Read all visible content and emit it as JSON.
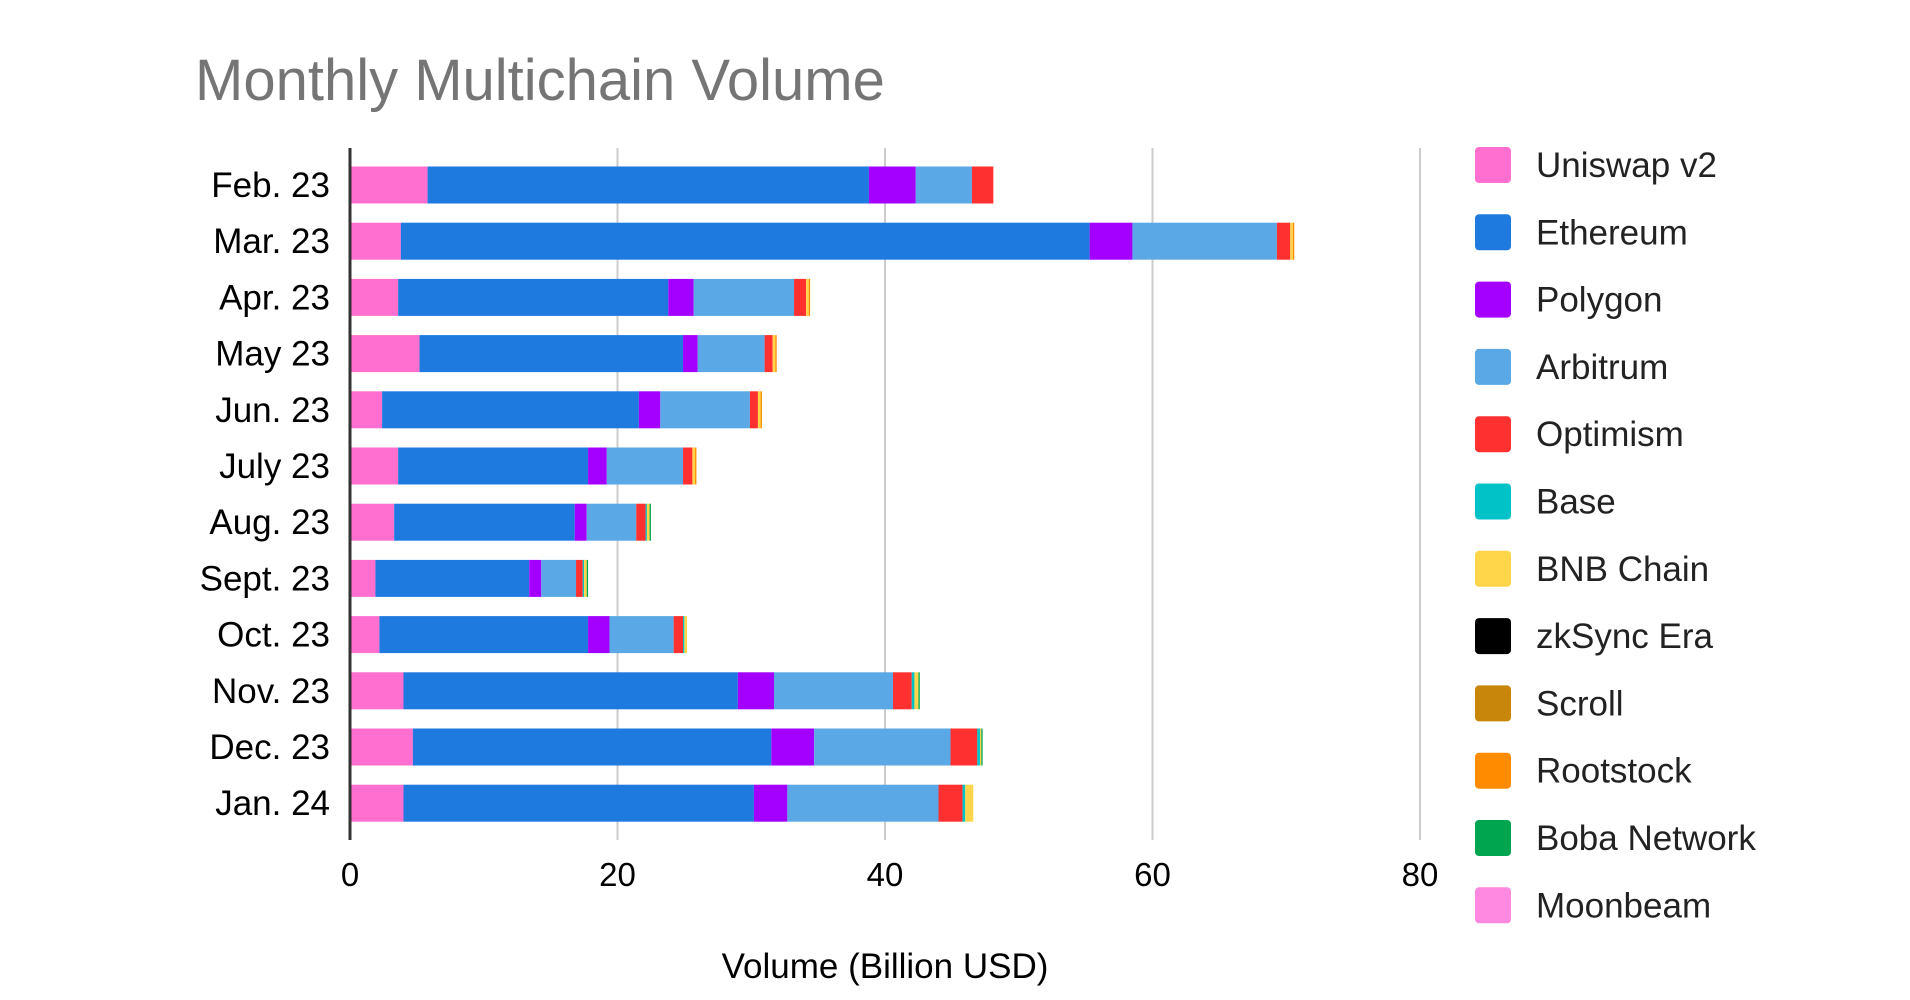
{
  "chart_data": {
    "type": "bar",
    "orientation": "horizontal",
    "stacked": true,
    "title": "Monthly Multichain Volume",
    "xlabel": "Volume (Billion USD)",
    "ylabel": "",
    "xlim": [
      0,
      80
    ],
    "x_ticks": [
      "0",
      "20",
      "40",
      "60",
      "80"
    ],
    "grid": true,
    "legend_position": "right",
    "categories": [
      "Feb. 23",
      "Mar. 23",
      "Apr. 23",
      "May 23",
      "Jun. 23",
      "July 23",
      "Aug. 23",
      "Sept. 23",
      "Oct. 23",
      "Nov. 23",
      "Dec. 23",
      "Jan. 24"
    ],
    "series": [
      {
        "name": "Uniswap v2",
        "color": "#ff6fcf",
        "values": [
          5.8,
          3.8,
          3.6,
          5.2,
          2.4,
          3.6,
          3.3,
          1.9,
          2.2,
          4.0,
          4.7,
          4.0
        ]
      },
      {
        "name": "Ethereum",
        "color": "#1f7ae0",
        "values": [
          33.0,
          51.5,
          20.2,
          19.7,
          19.2,
          14.2,
          13.5,
          11.5,
          15.6,
          25.0,
          26.8,
          26.2
        ]
      },
      {
        "name": "Polygon",
        "color": "#a300ff",
        "values": [
          3.5,
          3.2,
          1.9,
          1.1,
          1.6,
          1.4,
          0.9,
          0.9,
          1.6,
          2.7,
          3.2,
          2.5
        ]
      },
      {
        "name": "Arbitrum",
        "color": "#5aa9e6",
        "values": [
          4.2,
          10.8,
          7.5,
          5.0,
          6.7,
          5.7,
          3.7,
          2.6,
          4.8,
          8.9,
          10.2,
          11.3
        ]
      },
      {
        "name": "Optimism",
        "color": "#ff3030",
        "values": [
          1.6,
          1.0,
          0.9,
          0.6,
          0.6,
          0.7,
          0.7,
          0.5,
          0.7,
          1.4,
          2.0,
          1.8
        ]
      },
      {
        "name": "Base",
        "color": "#00c2c7",
        "values": [
          0,
          0,
          0,
          0,
          0,
          0,
          0.1,
          0.1,
          0.1,
          0.2,
          0.2,
          0.2
        ]
      },
      {
        "name": "BNB Chain",
        "color": "#ffd54a",
        "values": [
          0,
          0.2,
          0.2,
          0.2,
          0.2,
          0.2,
          0.2,
          0.2,
          0.2,
          0.3,
          0.1,
          0.6
        ]
      },
      {
        "name": "zkSync Era",
        "color": "#000000",
        "values": [
          0,
          0,
          0,
          0,
          0,
          0,
          0,
          0,
          0,
          0,
          0,
          0
        ]
      },
      {
        "name": "Scroll",
        "color": "#c8860a",
        "values": [
          0,
          0,
          0,
          0,
          0,
          0,
          0,
          0,
          0,
          0,
          0,
          0
        ]
      },
      {
        "name": "Rootstock",
        "color": "#ff8c00",
        "values": [
          0,
          0.1,
          0.1,
          0.1,
          0.1,
          0.1,
          0,
          0,
          0,
          0,
          0,
          0
        ]
      },
      {
        "name": "Boba Network",
        "color": "#00a64f",
        "values": [
          0,
          0,
          0,
          0,
          0,
          0,
          0.1,
          0.1,
          0,
          0.1,
          0.1,
          0
        ]
      },
      {
        "name": "Moonbeam",
        "color": "#ff88e0",
        "values": [
          0,
          0,
          0,
          0,
          0,
          0,
          0,
          0,
          0,
          0,
          0,
          0
        ]
      }
    ]
  }
}
